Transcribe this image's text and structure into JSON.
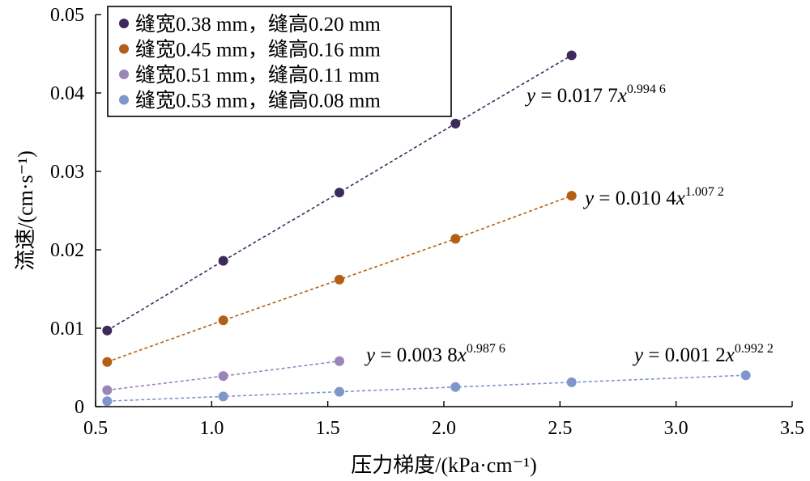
{
  "chart_data": {
    "type": "scatter",
    "xlabel": "压力梯度/(kPa·cm⁻¹)",
    "ylabel": "流速/(cm·s⁻¹)",
    "xlim": [
      0.5,
      3.5
    ],
    "ylim": [
      0,
      0.05
    ],
    "xticks": [
      "0.5",
      "1.0",
      "1.5",
      "2.0",
      "2.5",
      "3.0",
      "3.5"
    ],
    "yticks": [
      "0",
      "0.01",
      "0.02",
      "0.03",
      "0.04",
      "0.05"
    ],
    "xtick_values": [
      0.5,
      1.0,
      1.5,
      2.0,
      2.5,
      3.0,
      3.5
    ],
    "ytick_values": [
      0,
      0.01,
      0.02,
      0.03,
      0.04,
      0.05
    ],
    "grid": false,
    "legend_position": "top-left",
    "series": [
      {
        "name": "缝宽0.38 mm，缝高0.20 mm",
        "color": "#3d2a5c",
        "x": [
          0.55,
          1.05,
          1.55,
          2.05,
          2.55
        ],
        "y": [
          0.0097,
          0.0186,
          0.0273,
          0.0361,
          0.0448
        ],
        "equation": {
          "y": "y",
          "eq": " = 0.017 7",
          "x": "x",
          "exp": "0.994 6"
        }
      },
      {
        "name": "缝宽0.45 mm，缝高0.16 mm",
        "color": "#b35f15",
        "x": [
          0.55,
          1.05,
          1.55,
          2.05,
          2.55
        ],
        "y": [
          0.0057,
          0.011,
          0.0162,
          0.0214,
          0.0269
        ],
        "equation": {
          "y": "y",
          "eq": " = 0.010 4",
          "x": "x",
          "exp": "1.007 2"
        }
      },
      {
        "name": "缝宽0.51 mm，缝高0.11 mm",
        "color": "#9a85b8",
        "x": [
          0.55,
          1.05,
          1.55
        ],
        "y": [
          0.0021,
          0.0039,
          0.0058
        ],
        "equation": {
          "y": "y",
          "eq": " = 0.003 8",
          "x": "x",
          "exp": "0.987 6"
        }
      },
      {
        "name": "缝宽0.53 mm，缝高0.08 mm",
        "color": "#7f96cc",
        "x": [
          0.55,
          1.05,
          1.55,
          2.05,
          2.55,
          3.3
        ],
        "y": [
          0.0007,
          0.0013,
          0.0019,
          0.0025,
          0.0031,
          0.004
        ],
        "equation": {
          "y": "y",
          "eq": " = 0.001 2",
          "x": "x",
          "exp": "0.992 2"
        }
      }
    ]
  }
}
